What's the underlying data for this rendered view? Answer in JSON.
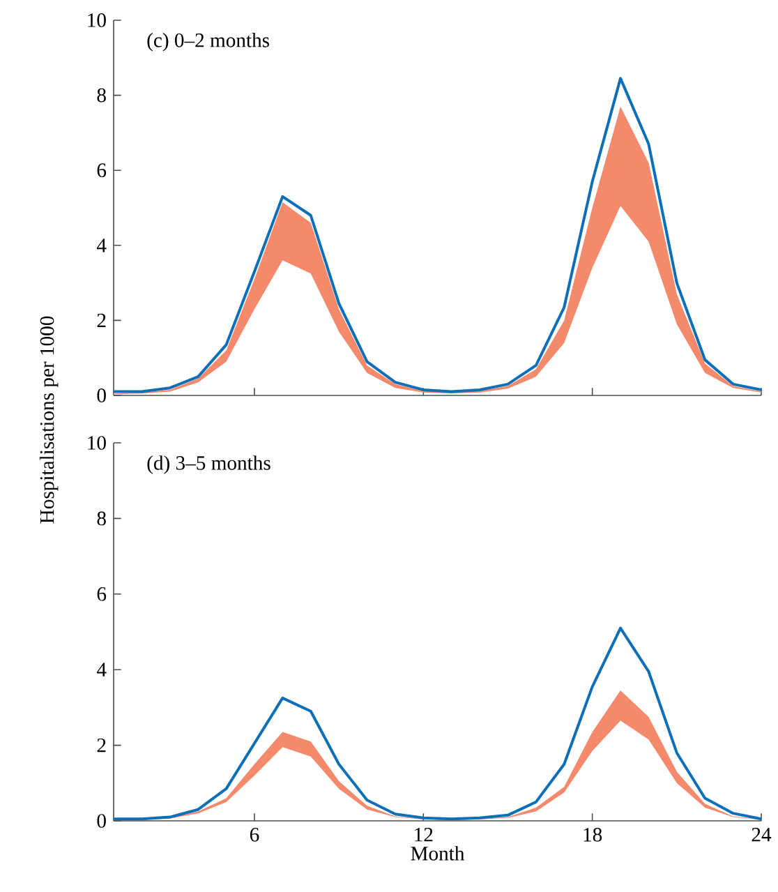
{
  "chart_data": [
    {
      "type": "line",
      "title": "(c) 0–2 months",
      "ylabel": "Hospitalisations per 1000",
      "x": [
        1,
        2,
        3,
        4,
        5,
        6,
        7,
        8,
        9,
        10,
        11,
        12,
        13,
        14,
        15,
        16,
        17,
        18,
        19,
        20,
        21,
        22,
        23,
        24
      ],
      "xlim": [
        1,
        24
      ],
      "xticks": [
        6,
        12,
        18,
        24
      ],
      "ylim": [
        0,
        10
      ],
      "yticks": [
        0,
        2,
        4,
        6,
        8,
        10
      ],
      "tick_labels": "y",
      "series": [
        {
          "type": "line",
          "color": "#0d6fb8",
          "values": [
            0.1,
            0.1,
            0.2,
            0.5,
            1.35,
            3.3,
            5.3,
            4.8,
            2.45,
            0.9,
            0.35,
            0.15,
            0.1,
            0.15,
            0.3,
            0.8,
            2.35,
            5.7,
            8.45,
            6.7,
            3.0,
            0.95,
            0.3,
            0.15
          ],
          "lower": [
            0.03,
            0.05,
            0.1,
            0.35,
            0.9,
            2.3,
            3.6,
            3.25,
            1.7,
            0.6,
            0.2,
            0.08,
            0.05,
            0.08,
            0.18,
            0.5,
            1.4,
            3.4,
            5.05,
            4.1,
            1.9,
            0.6,
            0.2,
            0.08
          ],
          "upper": [
            0.05,
            0.08,
            0.15,
            0.45,
            1.2,
            3.1,
            5.15,
            4.6,
            2.3,
            0.8,
            0.3,
            0.12,
            0.08,
            0.12,
            0.25,
            0.7,
            2.0,
            5.0,
            7.7,
            6.2,
            2.7,
            0.85,
            0.25,
            0.1
          ]
        }
      ]
    },
    {
      "type": "line",
      "title": "(d) 3–5 months",
      "xlabel": "Month",
      "x": [
        1,
        2,
        3,
        4,
        5,
        6,
        7,
        8,
        9,
        10,
        11,
        12,
        13,
        14,
        15,
        16,
        17,
        18,
        19,
        20,
        21,
        22,
        23,
        24
      ],
      "xlim": [
        1,
        24
      ],
      "xticks": [
        6,
        12,
        18,
        24
      ],
      "ylim": [
        0,
        10
      ],
      "yticks": [
        0,
        2,
        4,
        6,
        8,
        10
      ],
      "series": [
        {
          "type": "line",
          "color": "#0d6fb8",
          "values": [
            0.05,
            0.05,
            0.1,
            0.3,
            0.85,
            2.05,
            3.25,
            2.9,
            1.5,
            0.55,
            0.18,
            0.08,
            0.05,
            0.08,
            0.15,
            0.5,
            1.5,
            3.55,
            5.1,
            3.95,
            1.8,
            0.6,
            0.2,
            0.05
          ],
          "lower": [
            0.02,
            0.03,
            0.06,
            0.2,
            0.5,
            1.2,
            1.95,
            1.7,
            0.85,
            0.3,
            0.1,
            0.04,
            0.02,
            0.04,
            0.08,
            0.25,
            0.75,
            1.85,
            2.65,
            2.15,
            1.0,
            0.35,
            0.1,
            0.03
          ],
          "upper": [
            0.03,
            0.04,
            0.08,
            0.25,
            0.6,
            1.5,
            2.35,
            2.1,
            1.05,
            0.4,
            0.12,
            0.05,
            0.03,
            0.05,
            0.1,
            0.35,
            0.9,
            2.35,
            3.45,
            2.75,
            1.3,
            0.45,
            0.12,
            0.04
          ]
        }
      ]
    }
  ]
}
